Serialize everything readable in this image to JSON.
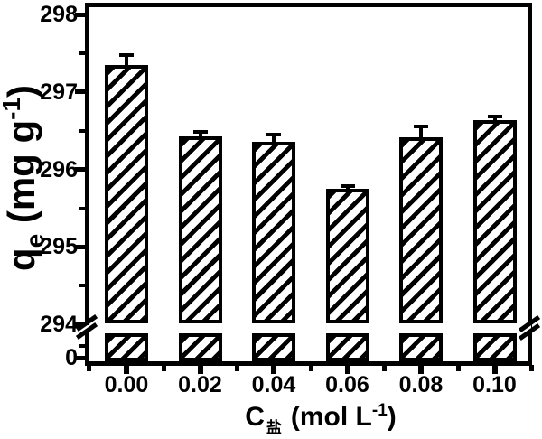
{
  "figure": {
    "background": "#ffffff",
    "ink": "#000000"
  },
  "y_axis": {
    "title": {
      "base": "q",
      "sub": "e",
      "unit_open": "(mg g",
      "unit_sup": "-1",
      "unit_close": ")"
    },
    "tick_labels": [
      "298",
      "297",
      "296",
      "295",
      "294",
      "0"
    ]
  },
  "x_axis": {
    "title": {
      "base": "C",
      "sub": "盐",
      "unit_open": "(mol L",
      "unit_sup": "-1",
      "unit_close": ")"
    },
    "tick_labels": [
      "0.00",
      "0.02",
      "0.04",
      "0.06",
      "0.08",
      "0.10"
    ]
  },
  "chart_data": {
    "type": "bar",
    "title": "",
    "xlabel": "C_盐 (mol L^-1)",
    "ylabel": "q_e (mg g^-1)",
    "categories": [
      "0.00",
      "0.02",
      "0.04",
      "0.06",
      "0.08",
      "0.10"
    ],
    "series": [
      {
        "name": "qe",
        "values": [
          297.35,
          296.43,
          296.36,
          295.75,
          296.42,
          296.64
        ],
        "errors": [
          0.12,
          0.06,
          0.09,
          0.03,
          0.13,
          0.04
        ]
      }
    ],
    "ylim": [
      294,
      298
    ],
    "y_axis_break": {
      "lower_value": 0,
      "resume_value": 294
    },
    "yticks_major": [
      298,
      297,
      296,
      295,
      294
    ],
    "yticks_minor": [
      297.5,
      296.5,
      295.5,
      294.5
    ],
    "ytick_extra": "0",
    "bar_fill": "#ffffff",
    "bar_edge": "#000000",
    "bar_hatch": "forward-diagonal",
    "grid": false,
    "legend": false
  }
}
